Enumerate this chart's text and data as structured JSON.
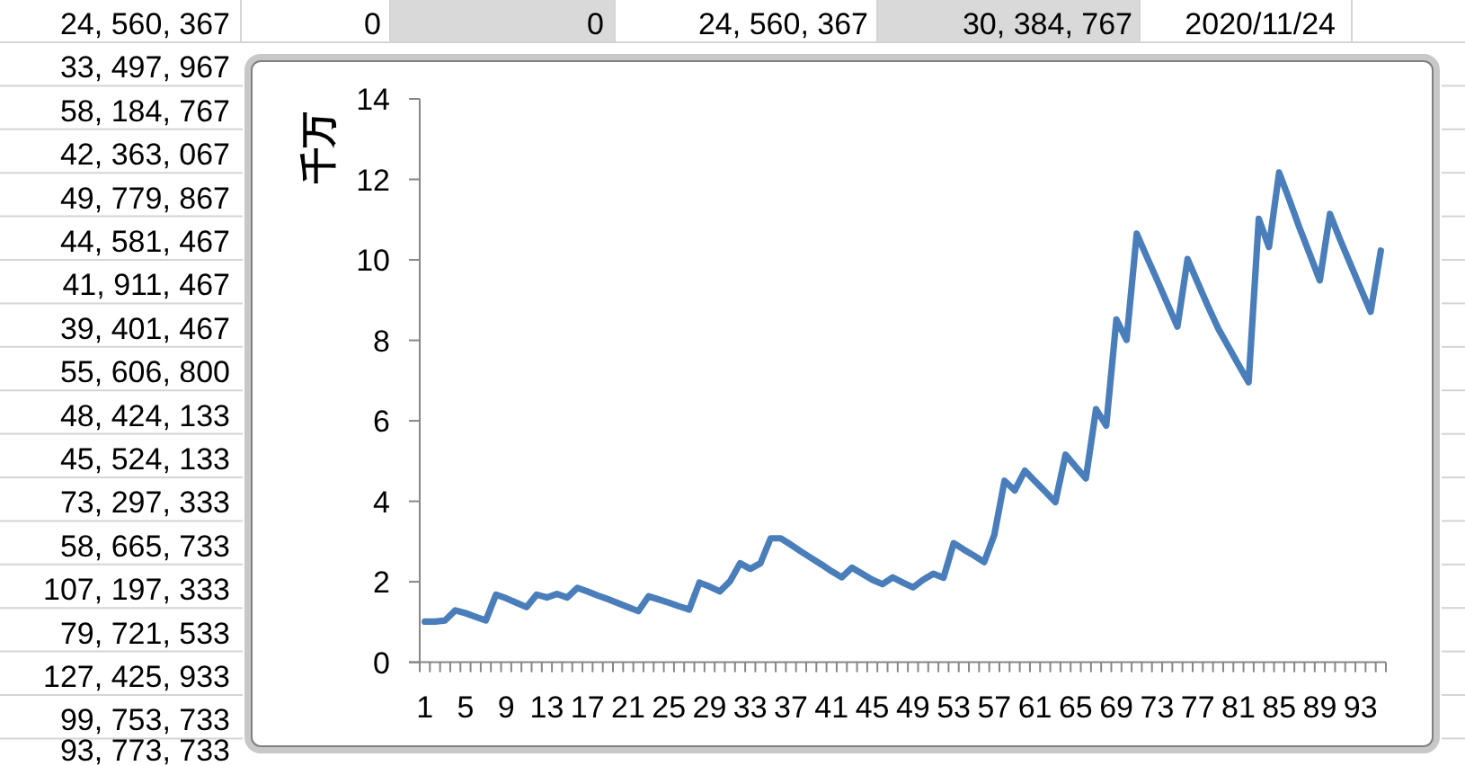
{
  "chart_data": {
    "type": "line",
    "ylabel": "千万",
    "categories": [
      "1",
      null,
      null,
      null,
      "5",
      null,
      null,
      null,
      "9",
      null,
      null,
      null,
      "13",
      null,
      null,
      null,
      "17",
      null,
      null,
      null,
      "21",
      null,
      null,
      null,
      "25",
      null,
      null,
      null,
      "29",
      null,
      null,
      null,
      "33",
      null,
      null,
      null,
      "37",
      null,
      null,
      null,
      "41",
      null,
      null,
      null,
      "45",
      null,
      null,
      null,
      "49",
      null,
      null,
      null,
      "53",
      null,
      null,
      null,
      "57",
      null,
      null,
      null,
      "61",
      null,
      null,
      null,
      "65",
      null,
      null,
      null,
      "69",
      null,
      null,
      null,
      "73",
      null,
      null,
      null,
      "77",
      null,
      null,
      null,
      "81",
      null,
      null,
      null,
      "85",
      null,
      null,
      null,
      "89",
      null,
      null,
      null,
      "93",
      null,
      null
    ],
    "series": [
      {
        "color": "#4a7ebb",
        "values": [
          1.01,
          1.01,
          1.04,
          1.29,
          1.22,
          1.13,
          1.04,
          1.68,
          1.59,
          1.48,
          1.37,
          1.68,
          1.61,
          1.7,
          1.61,
          1.85,
          1.76,
          1.66,
          1.57,
          1.47,
          1.37,
          1.27,
          1.64,
          1.56,
          1.48,
          1.39,
          1.31,
          1.98,
          1.88,
          1.76,
          2.01,
          2.46,
          2.32,
          2.46,
          3.08,
          3.08,
          2.92,
          2.75,
          2.59,
          2.43,
          2.26,
          2.11,
          2.35,
          2.2,
          2.05,
          1.94,
          2.11,
          1.98,
          1.86,
          2.05,
          2.2,
          2.1,
          2.96,
          2.8,
          2.65,
          2.49,
          3.17,
          4.51,
          4.27,
          4.76,
          4.5,
          4.24,
          3.98,
          5.16,
          4.86,
          4.57,
          6.29,
          5.88,
          8.52,
          8.01,
          10.65,
          10.07,
          9.5,
          8.92,
          8.34,
          10.02,
          9.43,
          8.85,
          8.3,
          7.85,
          7.4,
          6.96,
          11.02,
          10.32,
          12.17,
          11.5,
          10.8,
          10.15,
          9.49,
          11.14,
          10.5,
          9.9,
          9.3,
          8.71,
          10.23
        ]
      }
    ],
    "ylim": [
      0,
      14
    ],
    "yticks": [
      0,
      2,
      4,
      6,
      8,
      10,
      12,
      14
    ],
    "grid": false,
    "marker": "none",
    "line_style": "solid",
    "annotations": [
      "0",
      "0",
      "24, 560, 367",
      "30, 384, 767",
      "2020/11/24",
      "24, 560, 367",
      "33, 497, 967",
      "58, 184, 767",
      "42, 363, 067",
      "49, 779, 867",
      "44, 581, 467",
      "41, 911, 467",
      "39, 401, 467",
      "55, 606, 800",
      "48, 424, 133",
      "45, 524, 133",
      "73, 297, 333",
      "58, 665, 733",
      "107, 197, 333",
      "79, 721, 533",
      "127, 425, 933",
      "99, 753, 733",
      "93, 773, 733"
    ]
  }
}
